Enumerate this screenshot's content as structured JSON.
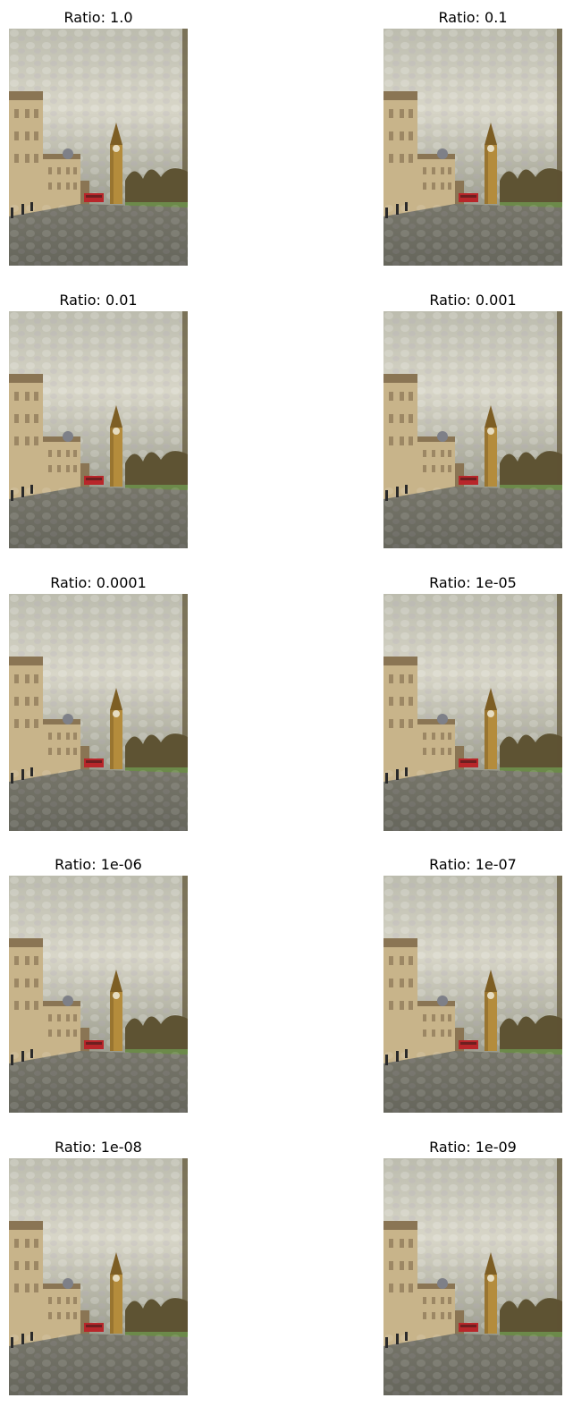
{
  "figure": {
    "background": "#ffffff",
    "panels": [
      {
        "title": "Ratio: 1.0"
      },
      {
        "title": "Ratio: 0.1"
      },
      {
        "title": "Ratio: 0.01"
      },
      {
        "title": "Ratio: 0.001"
      },
      {
        "title": "Ratio: 0.0001"
      },
      {
        "title": "Ratio: 1e-05"
      },
      {
        "title": "Ratio: 1e-06"
      },
      {
        "title": "Ratio: 1e-07"
      },
      {
        "title": "Ratio: 1e-08"
      },
      {
        "title": "Ratio: 1e-09"
      }
    ]
  },
  "scene": {
    "palette": {
      "sky_light": "#d8d6c8",
      "sky_mid": "#bcbcae",
      "sky_dark": "#9a9b8c",
      "road": "#77766a",
      "road_dark": "#66665c",
      "building_cream": "#c8b48a",
      "building_shadow": "#8a7554",
      "tower": "#b48c3c",
      "tower_dark": "#7d5e24",
      "trees": "#5e5333",
      "bus": "#b8262a",
      "grass": "#6c8a4a"
    }
  }
}
